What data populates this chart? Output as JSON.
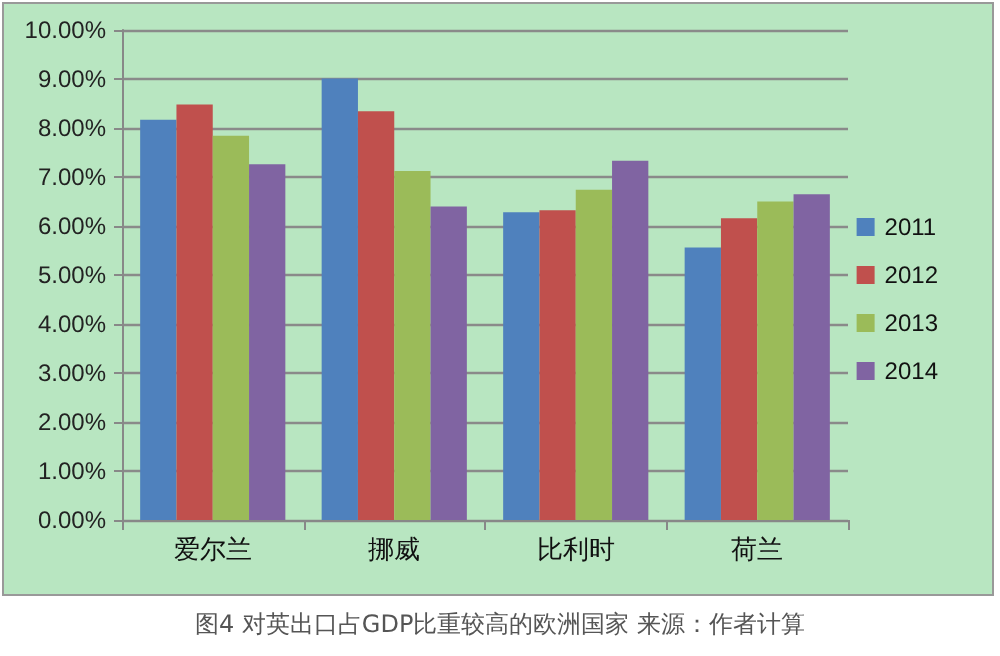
{
  "chart_data": {
    "type": "bar",
    "title": "图4 对英出口占GDP比重较高的欧洲国家 来源：作者计算",
    "categories": [
      "爱尔兰",
      "挪威",
      "比利时",
      "荷兰"
    ],
    "series": [
      {
        "name": "2011",
        "color": "#4f81bd",
        "values": [
          8.17,
          9.01,
          6.28,
          5.56
        ]
      },
      {
        "name": "2012",
        "color": "#c0504d",
        "values": [
          8.48,
          8.34,
          6.32,
          6.16
        ]
      },
      {
        "name": "2013",
        "color": "#9bbb59",
        "values": [
          7.84,
          7.12,
          6.74,
          6.5
        ]
      },
      {
        "name": "2014",
        "color": "#8064a2",
        "values": [
          7.26,
          6.4,
          7.33,
          6.65
        ]
      }
    ],
    "ylim": [
      0,
      10
    ],
    "yticks": [
      {
        "value": 0,
        "label": "0.00%"
      },
      {
        "value": 1,
        "label": "1.00%"
      },
      {
        "value": 2,
        "label": "2.00%"
      },
      {
        "value": 3,
        "label": "3.00%"
      },
      {
        "value": 4,
        "label": "4.00%"
      },
      {
        "value": 5,
        "label": "5.00%"
      },
      {
        "value": 6,
        "label": "6.00%"
      },
      {
        "value": 7,
        "label": "7.00%"
      },
      {
        "value": 8,
        "label": "8.00%"
      },
      {
        "value": 9,
        "label": "9.00%"
      },
      {
        "value": 10,
        "label": "10.00%"
      }
    ],
    "grid": "y",
    "legend": "right"
  }
}
